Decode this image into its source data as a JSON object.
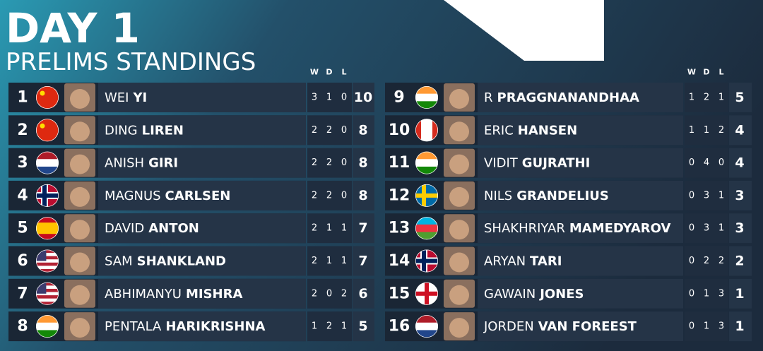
{
  "header": {
    "title": "DAY 1",
    "subtitle": "PRELIMS STANDINGS"
  },
  "columns": [
    "W",
    "D",
    "L"
  ],
  "players": [
    {
      "rank": 1,
      "first": "WEI",
      "last": "YI",
      "w": 3,
      "d": 1,
      "l": 0,
      "points": 10
    },
    {
      "rank": 2,
      "first": "DING",
      "last": "LIREN",
      "w": 2,
      "d": 2,
      "l": 0,
      "points": 8
    },
    {
      "rank": 3,
      "first": "ANISH",
      "last": "GIRI",
      "w": 2,
      "d": 2,
      "l": 0,
      "points": 8
    },
    {
      "rank": 4,
      "first": "MAGNUS",
      "last": "CARLSEN",
      "w": 2,
      "d": 2,
      "l": 0,
      "points": 8
    },
    {
      "rank": 5,
      "first": "DAVID",
      "last": "ANTON",
      "w": 2,
      "d": 1,
      "l": 1,
      "points": 7
    },
    {
      "rank": 6,
      "first": "SAM",
      "last": "SHANKLAND",
      "w": 2,
      "d": 1,
      "l": 1,
      "points": 7
    },
    {
      "rank": 7,
      "first": "ABHIMANYU",
      "last": "MISHRA",
      "w": 2,
      "d": 0,
      "l": 2,
      "points": 6
    },
    {
      "rank": 8,
      "first": "PENTALA",
      "last": "HARIKRISHNA",
      "w": 1,
      "d": 2,
      "l": 1,
      "points": 5
    },
    {
      "rank": 9,
      "first": "R",
      "last": "PRAGGNANANDHAA",
      "w": 1,
      "d": 2,
      "l": 1,
      "points": 5
    },
    {
      "rank": 10,
      "first": "ERIC",
      "last": "HANSEN",
      "w": 1,
      "d": 1,
      "l": 2,
      "points": 4
    },
    {
      "rank": 11,
      "first": "VIDIT",
      "last": "GUJRATHI",
      "w": 0,
      "d": 4,
      "l": 0,
      "points": 4
    },
    {
      "rank": 12,
      "first": "NILS",
      "last": "GRANDELIUS",
      "w": 0,
      "d": 3,
      "l": 1,
      "points": 3
    },
    {
      "rank": 13,
      "first": "SHAKHRIYAR",
      "last": "MAMEDYAROV",
      "w": 0,
      "d": 3,
      "l": 1,
      "points": 3
    },
    {
      "rank": 14,
      "first": "ARYAN",
      "last": "TARI",
      "w": 0,
      "d": 2,
      "l": 2,
      "points": 2
    },
    {
      "rank": 15,
      "first": "GAWAIN",
      "last": "JONES",
      "w": 0,
      "d": 1,
      "l": 3,
      "points": 1
    },
    {
      "rank": 16,
      "first": "JORDEN",
      "last": "VAN FOREEST",
      "w": 0,
      "d": 1,
      "l": 3,
      "points": 1
    }
  ]
}
